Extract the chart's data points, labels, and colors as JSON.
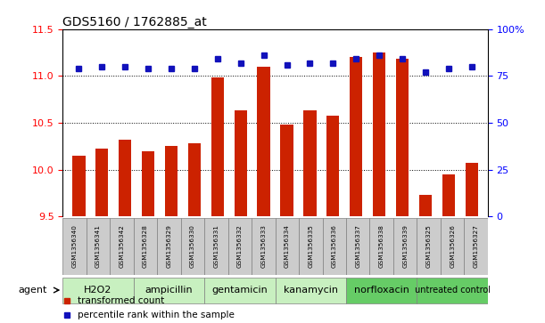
{
  "title": "GDS5160 / 1762885_at",
  "samples": [
    "GSM1356340",
    "GSM1356341",
    "GSM1356342",
    "GSM1356328",
    "GSM1356329",
    "GSM1356330",
    "GSM1356331",
    "GSM1356332",
    "GSM1356333",
    "GSM1356334",
    "GSM1356335",
    "GSM1356336",
    "GSM1356337",
    "GSM1356338",
    "GSM1356339",
    "GSM1356325",
    "GSM1356326",
    "GSM1356327"
  ],
  "red_values": [
    10.15,
    10.22,
    10.32,
    10.2,
    10.25,
    10.28,
    10.98,
    10.63,
    11.1,
    10.48,
    10.63,
    10.58,
    11.2,
    11.25,
    11.18,
    9.73,
    9.95,
    10.07
  ],
  "blue_values": [
    79,
    80,
    80,
    79,
    79,
    79,
    84,
    82,
    86,
    81,
    82,
    82,
    84,
    86,
    84,
    77,
    79,
    80
  ],
  "groups": [
    {
      "label": "H2O2",
      "start": 0,
      "end": 3
    },
    {
      "label": "ampicillin",
      "start": 3,
      "end": 6
    },
    {
      "label": "gentamicin",
      "start": 6,
      "end": 9
    },
    {
      "label": "kanamycin",
      "start": 9,
      "end": 12
    },
    {
      "label": "norfloxacin",
      "start": 12,
      "end": 15
    },
    {
      "label": "untreated control",
      "start": 15,
      "end": 18
    }
  ],
  "light_green": "#c8f0c0",
  "dark_green": "#66cc66",
  "ylim_left": [
    9.5,
    11.5
  ],
  "ylim_right": [
    0,
    100
  ],
  "yticks_left": [
    9.5,
    10.0,
    10.5,
    11.0,
    11.5
  ],
  "yticks_right": [
    0,
    25,
    50,
    75,
    100
  ],
  "bar_color": "#cc2200",
  "dot_color": "#1111bb",
  "bar_baseline": 9.5,
  "background_color": "#ffffff",
  "sample_box_color": "#cccccc",
  "legend_items": [
    {
      "label": "transformed count",
      "color": "#cc2200"
    },
    {
      "label": "percentile rank within the sample",
      "color": "#1111bb"
    }
  ]
}
